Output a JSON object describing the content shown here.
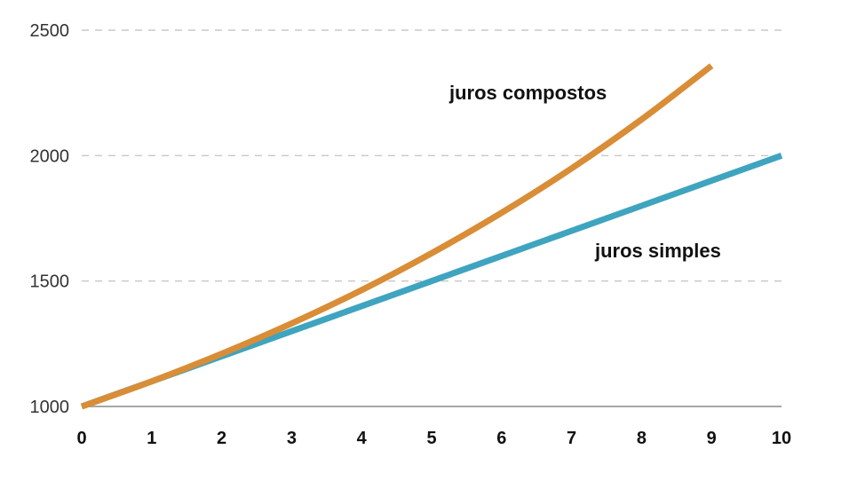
{
  "chart_data": {
    "type": "line",
    "title": "",
    "xlabel": "",
    "ylabel": "",
    "xlim": [
      0,
      10
    ],
    "ylim": [
      1000,
      2500
    ],
    "x_ticks": [
      "0",
      "1",
      "2",
      "3",
      "4",
      "5",
      "6",
      "7",
      "8",
      "9",
      "10"
    ],
    "y_ticks": [
      "1000",
      "1500",
      "2000",
      "2500"
    ],
    "grid": "horizontal dashed",
    "series": [
      {
        "name": "juros simples",
        "color": "#3FA4BF",
        "x": [
          0,
          1,
          2,
          3,
          4,
          5,
          6,
          7,
          8,
          9,
          10
        ],
        "values": [
          1000,
          1100,
          1200,
          1300,
          1400,
          1500,
          1600,
          1700,
          1800,
          1900,
          2000
        ]
      },
      {
        "name": "juros compostos",
        "color": "#D98D36",
        "x": [
          0,
          1,
          2,
          3,
          4,
          5,
          6,
          7,
          8,
          9
        ],
        "values": [
          1000,
          1100,
          1210,
          1331,
          1464,
          1611,
          1772,
          1949,
          2144,
          2358
        ]
      }
    ]
  }
}
